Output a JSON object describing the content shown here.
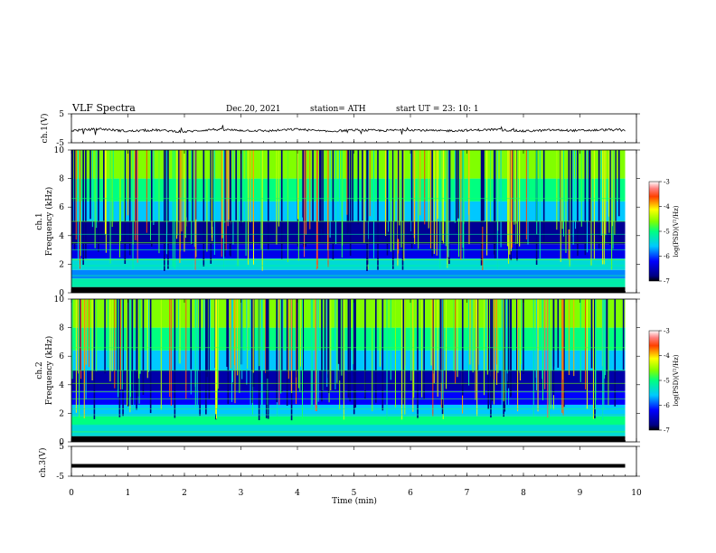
{
  "chart_data": [
    {
      "type": "line",
      "panel": "ch1-waveform",
      "ylabel": "ch.1(V)",
      "ylim": [
        -5,
        5
      ],
      "y_ticks": [
        5,
        -5
      ],
      "x": [
        0,
        0.5,
        1,
        1.5,
        2,
        2.5,
        3,
        3.5,
        4,
        4.5,
        5,
        5.5,
        6,
        6.5,
        7,
        7.5,
        8,
        8.5,
        9,
        9.5,
        9.8
      ],
      "values": [
        -0.8,
        -0.2,
        -1.0,
        -0.6,
        -1.2,
        -0.4,
        -0.7,
        -0.9,
        -0.3,
        -1.1,
        -0.6,
        -0.8,
        -0.5,
        -0.9,
        -0.7,
        -0.4,
        -1.0,
        -0.6,
        -0.8,
        -0.5,
        -0.7
      ]
    },
    {
      "type": "heatmap",
      "panel": "ch1-spectrogram",
      "ylabel": "ch.1",
      "ylabel2": "Frequency (kHz)",
      "ylim": [
        0,
        10
      ],
      "y_ticks": [
        0,
        2,
        4,
        6,
        8,
        10
      ],
      "colorbar": {
        "label": "log(PSD)(V²/Hz)",
        "range": [
          -7,
          -3
        ],
        "ticks": [
          -3,
          -4,
          -5,
          -6,
          -7
        ]
      },
      "bands": [
        {
          "from": 0.0,
          "to": 0.4,
          "level": -7.0
        },
        {
          "from": 0.4,
          "to": 1.0,
          "level": -5.2
        },
        {
          "from": 1.0,
          "to": 1.6,
          "level": -5.8
        },
        {
          "from": 1.6,
          "to": 2.4,
          "level": -5.4
        },
        {
          "from": 2.4,
          "to": 3.4,
          "level": -6.3
        },
        {
          "from": 3.4,
          "to": 5.0,
          "level": -6.7
        },
        {
          "from": 5.0,
          "to": 6.4,
          "level": -5.6
        },
        {
          "from": 6.4,
          "to": 8.0,
          "level": -5.0
        },
        {
          "from": 8.0,
          "to": 10.0,
          "level": -4.6
        }
      ]
    },
    {
      "type": "heatmap",
      "panel": "ch2-spectrogram",
      "ylabel": "ch.2",
      "ylabel2": "Frequency (kHz)",
      "ylim": [
        0,
        10
      ],
      "y_ticks": [
        0,
        2,
        4,
        6,
        8,
        10
      ],
      "colorbar": {
        "label": "log(PSD)(V²/Hz)",
        "range": [
          -7,
          -3
        ],
        "ticks": [
          -3,
          -4,
          -5,
          -6,
          -7
        ]
      },
      "bands": [
        {
          "from": 0.0,
          "to": 0.4,
          "level": -7.0
        },
        {
          "from": 0.4,
          "to": 1.2,
          "level": -5.4
        },
        {
          "from": 1.2,
          "to": 1.8,
          "level": -5.0
        },
        {
          "from": 1.8,
          "to": 2.6,
          "level": -5.6
        },
        {
          "from": 2.6,
          "to": 3.6,
          "level": -6.2
        },
        {
          "from": 3.6,
          "to": 5.0,
          "level": -6.6
        },
        {
          "from": 5.0,
          "to": 6.4,
          "level": -5.6
        },
        {
          "from": 6.4,
          "to": 8.0,
          "level": -5.0
        },
        {
          "from": 8.0,
          "to": 10.0,
          "level": -4.6
        }
      ]
    },
    {
      "type": "line",
      "panel": "ch3-waveform",
      "ylabel": "ch.3(V)",
      "ylim": [
        -5,
        5
      ],
      "y_ticks": [
        5,
        -5
      ],
      "x": [
        0,
        9.8
      ],
      "values": [
        -1.5,
        -1.5
      ]
    }
  ],
  "header": {
    "title": "VLF  Spectra",
    "date": "Dec.20, 2021",
    "station": "station= ATH",
    "start": "start  UT  =    23: 10: 1"
  },
  "x_axis": {
    "label": "Time  (min)",
    "ticks": [
      0,
      1,
      2,
      3,
      4,
      5,
      6,
      7,
      8,
      9,
      10
    ],
    "xlim": [
      0,
      10
    ],
    "data_end": 9.8
  }
}
